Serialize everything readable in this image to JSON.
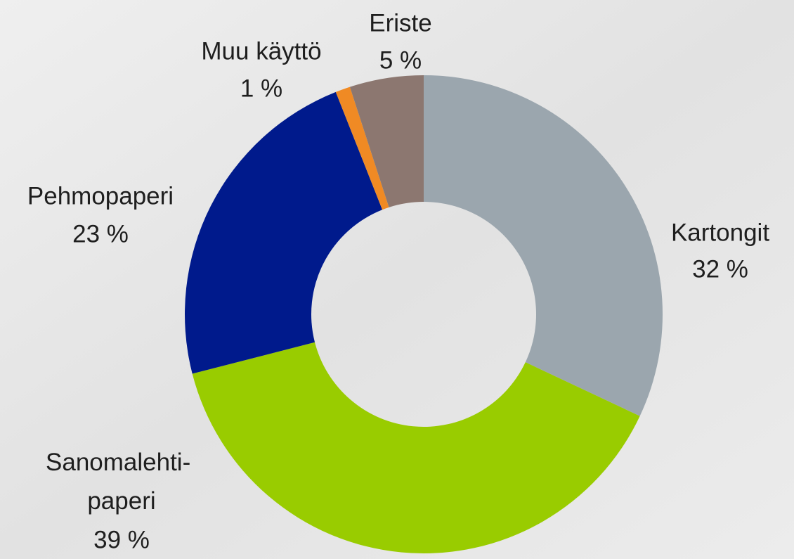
{
  "chart_data": {
    "type": "donut",
    "categories": [
      "Kartongit",
      "Sanomalehti-\npaperi",
      "Pehmopaperi",
      "Muu käyttö",
      "Eriste"
    ],
    "values": [
      32,
      39,
      23,
      1,
      5
    ],
    "value_labels": [
      "32 %",
      "39 %",
      "23 %",
      "1 %",
      "5 %"
    ],
    "colors": [
      "#9ba6ae",
      "#99cc00",
      "#001a8c",
      "#f08a24",
      "#8c7770"
    ]
  }
}
